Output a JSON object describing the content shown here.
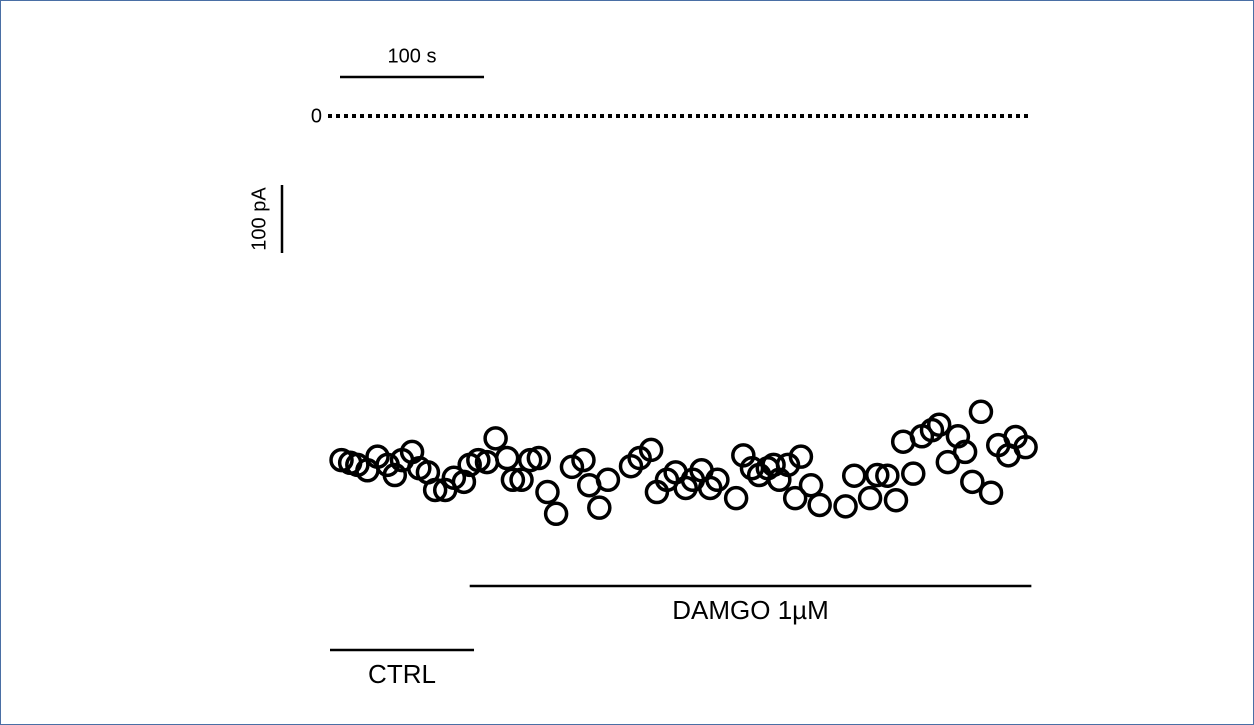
{
  "chart_data": {
    "type": "scatter",
    "x": [
      0,
      6,
      11,
      18,
      25,
      32,
      37,
      42,
      49,
      54,
      60,
      65,
      72,
      78,
      85,
      89,
      95,
      101,
      107,
      115,
      119,
      125,
      131,
      137,
      143,
      149,
      160,
      168,
      172,
      179,
      185,
      201,
      207,
      215,
      219,
      226,
      232,
      239,
      244,
      250,
      256,
      261,
      274,
      279,
      285,
      290,
      296,
      300,
      304,
      310,
      315,
      319,
      326,
      332,
      350,
      356,
      367,
      372,
      379,
      385,
      390,
      397,
      403,
      410,
      415,
      421,
      428,
      433,
      438,
      444,
      451,
      456,
      463,
      468,
      475
    ],
    "series": [
      {
        "color": "#000000",
        "values": [
          -506,
          -510,
          -513,
          -521,
          -501,
          -513,
          -528,
          -506,
          -494,
          -518,
          -524,
          -550,
          -550,
          -532,
          -538,
          -513,
          -506,
          -509,
          -474,
          -503,
          -535,
          -535,
          -506,
          -503,
          -553,
          -585,
          -516,
          -506,
          -543,
          -576,
          -535,
          -515,
          -503,
          -491,
          -553,
          -535,
          -524,
          -547,
          -535,
          -521,
          -547,
          -535,
          -562,
          -499,
          -518,
          -528,
          -518,
          -513,
          -535,
          -513,
          -562,
          -501,
          -543,
          -572,
          -574,
          -529,
          -562,
          -528,
          -529,
          -565,
          -479,
          -526,
          -471,
          -462,
          -454,
          -509,
          -471,
          -494,
          -538,
          -435,
          -554,
          -484,
          -499,
          -472,
          -487
        ]
      }
    ],
    "xlim": [
      -8,
      485
    ],
    "ylim": [
      -650,
      0
    ],
    "yticks": [
      0
    ],
    "x_scalebar": {
      "value": 100,
      "label": "100 s"
    },
    "y_scalebar": {
      "value": 100,
      "label": "100 pA"
    },
    "periods": [
      {
        "label": "DAMGO 1µM",
        "start": 89,
        "end": 479
      },
      {
        "label": "CTRL",
        "start": -8,
        "end": 92
      }
    ]
  }
}
